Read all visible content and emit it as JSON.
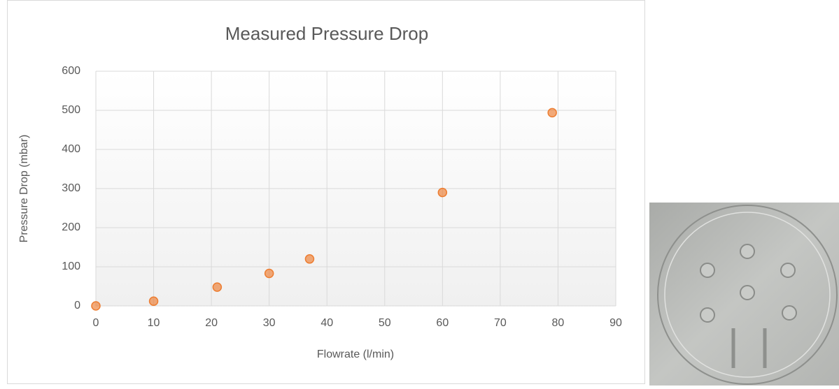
{
  "chart_data": {
    "type": "scatter",
    "title": "Measured Pressure Drop",
    "x_label": "Flowrate (l/min)",
    "y_label": "Pressure Drop (mbar)",
    "x": [
      0,
      10,
      21,
      30,
      37,
      60,
      79
    ],
    "values": [
      0,
      12,
      48,
      83,
      120,
      290,
      494
    ],
    "color": "#ed7d31",
    "xlim": [
      0,
      90
    ],
    "xticks": [
      0,
      10,
      20,
      30,
      40,
      50,
      60,
      70,
      80,
      90
    ],
    "ylim": [
      0,
      600
    ],
    "yticks": [
      0,
      100,
      200,
      300,
      400,
      500,
      600
    ],
    "grid": true
  }
}
